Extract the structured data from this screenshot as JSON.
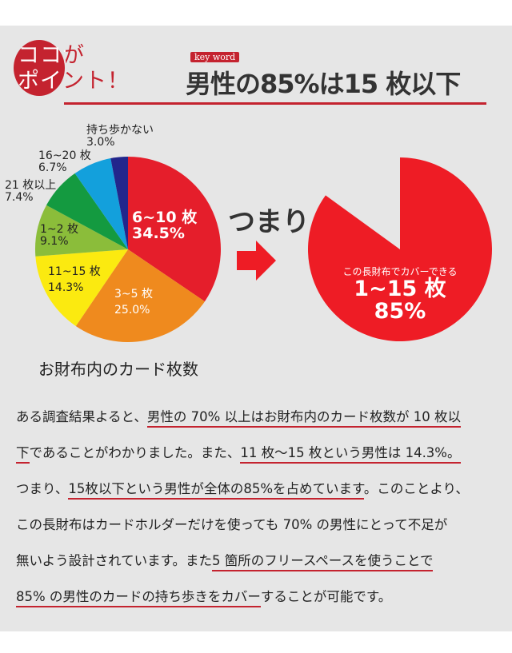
{
  "header": {
    "point_line1": "ココが",
    "point_line2": "ポイント！",
    "keyword_tag": "key word",
    "headline": "男性の85%は15 枚以下",
    "accent": "#c4232f"
  },
  "chart_data": [
    {
      "type": "pie",
      "title": "お財布内のカード枚数",
      "slices": [
        {
          "label": "6~10 枚",
          "value": 34.5,
          "display": "34.5%",
          "color": "#e51e2b"
        },
        {
          "label": "3~5 枚",
          "value": 25.0,
          "display": "25.0%",
          "color": "#ef8a1e"
        },
        {
          "label": "11~15 枚",
          "value": 14.3,
          "display": "14.3%",
          "color": "#fbea10"
        },
        {
          "label": "1~2 枚",
          "value": 9.1,
          "display": "9.1%",
          "color": "#8bbd3a"
        },
        {
          "label": "21 枚以上",
          "value": 7.4,
          "display": "7.4%",
          "color": "#149a40"
        },
        {
          "label": "16~20 枚",
          "value": 6.7,
          "display": "6.7%",
          "color": "#13a0dc"
        },
        {
          "label": "持ち歩かない",
          "value": 3.0,
          "display": "3.0%",
          "color": "#22268c"
        }
      ]
    },
    {
      "type": "pie",
      "slices": [
        {
          "label": "1~15 枚",
          "value": 85,
          "display": "85%",
          "caption": "この長財布でカバーできる",
          "color": "#ee1c25"
        }
      ]
    }
  ],
  "connector": {
    "text": "つまり",
    "arrow_icon": "right-arrow-icon",
    "color": "#ee1c25"
  },
  "paragraph": [
    [
      {
        "t": "ある調査結果よると、"
      },
      {
        "t": "男性の 70% 以上はお財布内のカード枚数が 10 枚以",
        "u": true
      }
    ],
    [
      {
        "t": "下",
        "u": true
      },
      {
        "t": "であることがわかりました。また、"
      },
      {
        "t": "11 枚〜15 枚という男性は 14.3%。",
        "u": true
      }
    ],
    [
      {
        "t": "つまり、"
      },
      {
        "t": "15枚以下という男性が全体の85%を占めています",
        "u": true
      },
      {
        "t": "。このことより、"
      }
    ],
    [
      {
        "t": "この長財布はカードホルダーだけを使っても 70% の男性にとって不足が"
      }
    ],
    [
      {
        "t": "無いよう設計されています。また"
      },
      {
        "t": "5 箇所のフリースペースを使うことで",
        "u": true
      }
    ],
    [
      {
        "t": "85% の男性のカードの持ち歩きをカバー",
        "u": true
      },
      {
        "t": "することが可能です。"
      }
    ]
  ]
}
